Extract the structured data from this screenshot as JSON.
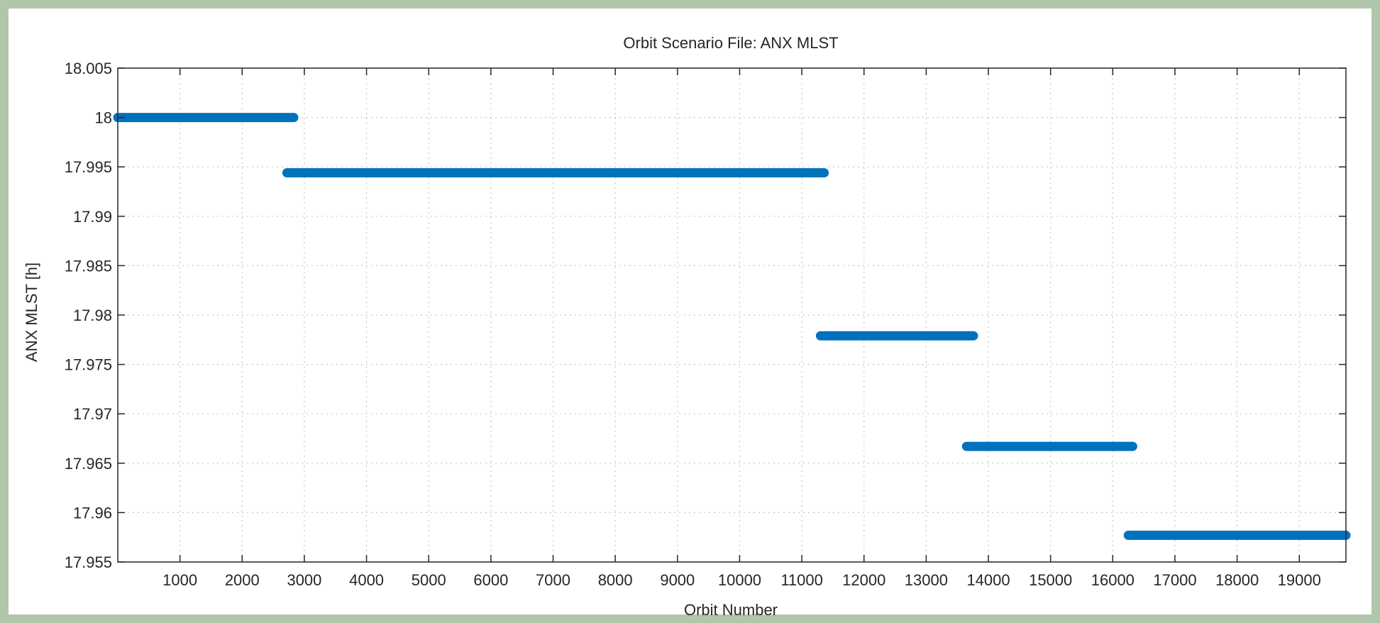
{
  "chart_data": {
    "type": "line",
    "title": "Orbit Scenario File: ANX MLST",
    "xlabel": "Orbit Number",
    "ylabel": "ANX MLST [h]",
    "xlim": [
      0,
      19750
    ],
    "ylim": [
      17.955,
      18.005
    ],
    "x_ticks": [
      1000,
      2000,
      3000,
      4000,
      5000,
      6000,
      7000,
      8000,
      9000,
      10000,
      11000,
      12000,
      13000,
      14000,
      15000,
      16000,
      17000,
      18000,
      19000
    ],
    "y_ticks": [
      17.955,
      17.96,
      17.965,
      17.97,
      17.975,
      17.98,
      17.985,
      17.99,
      17.995,
      18,
      18.005
    ],
    "y_tick_labels": [
      "17.955",
      "17.96",
      "17.965",
      "17.97",
      "17.975",
      "17.98",
      "17.985",
      "17.99",
      "17.995",
      "18",
      "18.005"
    ],
    "grid": true,
    "series_color": "#0072bd",
    "segments": [
      {
        "x_start": 0,
        "x_end": 2830,
        "y": 18.0
      },
      {
        "x_start": 2720,
        "x_end": 11360,
        "y": 17.9944
      },
      {
        "x_start": 11300,
        "x_end": 13760,
        "y": 17.9779
      },
      {
        "x_start": 13650,
        "x_end": 16320,
        "y": 17.9667
      },
      {
        "x_start": 16250,
        "x_end": 19750,
        "y": 17.9577
      }
    ]
  }
}
